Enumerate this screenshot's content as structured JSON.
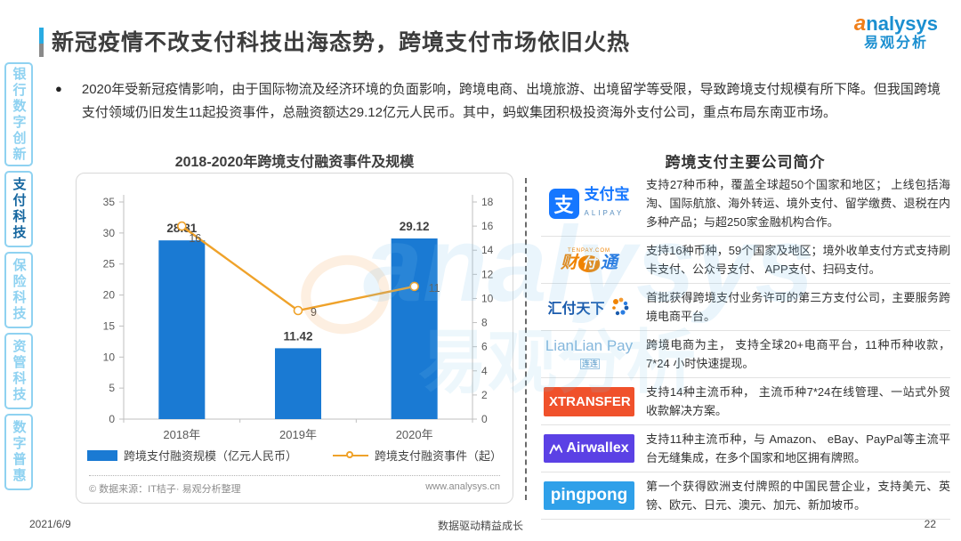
{
  "header": {
    "title": "新冠疫情不改支付科技出海态势，跨境支付市场依旧火热",
    "logo": {
      "brand_latin_head": "a",
      "brand_latin_tail": "nalysys",
      "brand_cn": "易观分析"
    }
  },
  "sidebar": {
    "items": [
      {
        "label": "银行数字创新",
        "active": false
      },
      {
        "label": "支付科技",
        "active": true
      },
      {
        "label": "保险科技",
        "active": false
      },
      {
        "label": "资管科技",
        "active": false
      },
      {
        "label": "数字普惠",
        "active": false
      }
    ]
  },
  "intro": {
    "bullet": "●",
    "text": "2020年受新冠疫情影响，由于国际物流及经济环境的负面影响，跨境电商、出境旅游、出境留学等受限，导致跨境支付规模有所下降。但我国跨境支付领域仍旧发生11起投资事件，总融资额达29.12亿元人民币。其中，蚂蚁集团积极投资海外支付公司，重点布局东南亚市场。"
  },
  "chart": {
    "title": "2018-2020年跨境支付融资事件及规模",
    "source_left": "© 数据来源：IT桔子· 易观分析整理",
    "source_right": "www.analysys.cn"
  },
  "chart_data": {
    "type": "bar+line",
    "title": "2018-2020年跨境支付融资事件及规模",
    "categories": [
      "2018年",
      "2019年",
      "2020年"
    ],
    "series": [
      {
        "name": "跨境支付融资规模（亿元人民币）",
        "type": "bar",
        "axis": "left",
        "values": [
          28.81,
          11.42,
          29.12
        ],
        "color": "#1a7ad3"
      },
      {
        "name": "跨境支付融资事件（起）",
        "type": "line",
        "axis": "right",
        "values": [
          16,
          9,
          11
        ],
        "color": "#efa22a"
      }
    ],
    "left_axis": {
      "min": 0,
      "max": 35,
      "step": 5
    },
    "right_axis": {
      "min": 0,
      "max": 18,
      "step": 2
    },
    "legend_position": "bottom",
    "grid": false
  },
  "companies": {
    "title": "跨境支付主要公司简介",
    "rows": [
      {
        "id": "alipay",
        "logo_text": "支付宝",
        "logo_sub": "ALIPAY",
        "desc": "支持27种币种，覆盖全球超50个国家和地区； 上线包括海淘、国际航旅、海外转运、境外支付、留学缴费、退税在内多种产品；与超250家金融机构合作。"
      },
      {
        "id": "tenpay",
        "logo_text": "财付通",
        "logo_sub": "TENPAY.COM",
        "desc": "支持16种币种，59个国家及地区；境外收单支付方式支持刷卡支付、公众号支付、 APP支付、扫码支付。"
      },
      {
        "id": "huifu",
        "logo_text": "汇付天下",
        "desc": "首批获得跨境支付业务许可的第三方支付公司，主要服务跨境电商平台。"
      },
      {
        "id": "lianlian",
        "logo_text": "LianLian Pay",
        "logo_sub": "连连",
        "desc": "跨境电商为主， 支持全球20+电商平台，11种币种收款，7*24 小时快速提现。"
      },
      {
        "id": "xtransfer",
        "logo_text": "XTRANSFER",
        "desc": "支持14种主流币种， 主流币种7*24在线管理、一站式外贸收款解决方案。"
      },
      {
        "id": "airwallex",
        "logo_text": "Airwallex",
        "desc": "支持11种主流币种，与 Amazon、 eBay、PayPal等主流平台无缝集成，在多个国家和地区拥有牌照。"
      },
      {
        "id": "pingpong",
        "logo_text": "pingpong",
        "desc": "第一个获得欧洲支付牌照的中国民营企业，支持美元、英镑、欧元、日元、澳元、加元、新加坡币。"
      }
    ]
  },
  "watermark": {
    "latin": "analysys",
    "cn": "易观分析"
  },
  "footer": {
    "date": "2021/6/9",
    "center": "数据驱动精益成长",
    "page": "22"
  }
}
